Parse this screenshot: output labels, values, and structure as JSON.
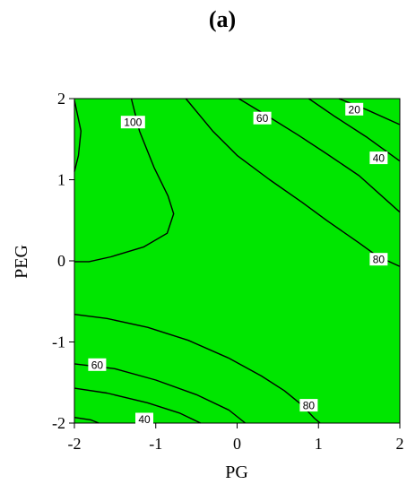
{
  "panel_label": "(a)",
  "colors": {
    "fill": "#00e600",
    "contour": "#000000",
    "label_bg": "#ffffff"
  },
  "chart_data": {
    "type": "contour",
    "title": "",
    "xlabel": "PG",
    "ylabel": "PEG",
    "xlim": [
      -2,
      2
    ],
    "ylim": [
      -2,
      2
    ],
    "x_ticks": [
      "-2",
      "-1",
      "0",
      "1",
      "2"
    ],
    "y_ticks": [
      "-2",
      "-1",
      "0",
      "1",
      "2"
    ],
    "grid": false,
    "contours": [
      {
        "level": 100,
        "label": "100",
        "label_at": [
          -1.28,
          1.71
        ],
        "points": [
          [
            -2,
            1.98
          ],
          [
            -1.92,
            1.6
          ],
          [
            -1.95,
            1.3
          ],
          [
            -2,
            1.1
          ]
        ]
      },
      {
        "level": 100,
        "label": "",
        "label_at": null,
        "points": [
          [
            -1.3,
            2
          ],
          [
            -1.2,
            1.6
          ],
          [
            -1.02,
            1.15
          ],
          [
            -0.85,
            0.8
          ],
          [
            -0.78,
            0.58
          ],
          [
            -0.86,
            0.34
          ],
          [
            -1.15,
            0.17
          ],
          [
            -1.55,
            0.05
          ],
          [
            -1.82,
            -0.01
          ],
          [
            -2,
            -0.01
          ]
        ]
      },
      {
        "level": 60,
        "label": "60",
        "label_at": [
          0.31,
          1.76
        ],
        "points": [
          [
            -0.63,
            2
          ],
          [
            -0.3,
            1.6
          ],
          [
            0,
            1.3
          ],
          [
            0.4,
            1.0
          ],
          [
            0.8,
            0.72
          ],
          [
            1.1,
            0.5
          ],
          [
            1.5,
            0.22
          ],
          [
            1.72,
            0.06
          ],
          [
            2,
            -0.07
          ]
        ]
      },
      {
        "level": 60,
        "label": "",
        "label_at": null,
        "points": [
          [
            0.02,
            2
          ],
          [
            0.35,
            1.8
          ],
          [
            0.75,
            1.55
          ],
          [
            1.1,
            1.32
          ],
          [
            1.5,
            1.05
          ],
          [
            2,
            0.6
          ]
        ]
      },
      {
        "level": 40,
        "label": "40",
        "label_at": [
          1.74,
          1.27
        ],
        "points": [
          [
            0.88,
            2
          ],
          [
            1.2,
            1.78
          ],
          [
            1.6,
            1.52
          ],
          [
            2,
            1.23
          ]
        ]
      },
      {
        "level": 20,
        "label": "20",
        "label_at": [
          1.44,
          1.87
        ],
        "points": [
          [
            1.25,
            2
          ],
          [
            1.6,
            1.86
          ],
          [
            2,
            1.68
          ]
        ]
      },
      {
        "level": 80,
        "label": "80",
        "label_at": [
          1.74,
          0.02
        ],
        "points": []
      },
      {
        "level": 80,
        "label": "80",
        "label_at": [
          0.88,
          -1.78
        ],
        "points": [
          [
            -2,
            -0.66
          ],
          [
            -1.6,
            -0.71
          ],
          [
            -1.1,
            -0.82
          ],
          [
            -0.6,
            -0.98
          ],
          [
            -0.1,
            -1.2
          ],
          [
            0.3,
            -1.42
          ],
          [
            0.58,
            -1.6
          ],
          [
            0.8,
            -1.78
          ],
          [
            0.95,
            -1.94
          ],
          [
            1.02,
            -2
          ]
        ]
      },
      {
        "level": 60,
        "label": "60",
        "label_at": [
          -1.72,
          -1.28
        ],
        "points": [
          [
            -2,
            -1.27
          ],
          [
            -1.5,
            -1.33
          ],
          [
            -1.0,
            -1.47
          ],
          [
            -0.5,
            -1.65
          ],
          [
            -0.1,
            -1.84
          ],
          [
            0.1,
            -2
          ]
        ]
      },
      {
        "level": 40,
        "label": "40",
        "label_at": [
          -1.14,
          -1.95
        ],
        "points": [
          [
            -2,
            -1.57
          ],
          [
            -1.6,
            -1.63
          ],
          [
            -1.1,
            -1.75
          ],
          [
            -0.7,
            -1.88
          ],
          [
            -0.45,
            -2
          ]
        ]
      },
      {
        "level": 20,
        "label": "",
        "label_at": null,
        "points": [
          [
            -2,
            -1.93
          ],
          [
            -1.8,
            -1.96
          ],
          [
            -1.7,
            -2
          ]
        ]
      }
    ]
  }
}
